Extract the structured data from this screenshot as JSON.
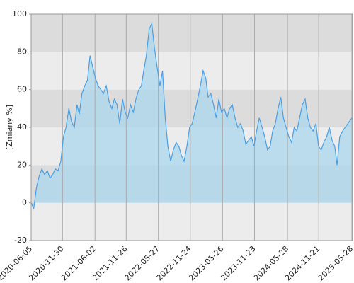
{
  "chart_data": {
    "type": "area",
    "y_label": "[Zmiany %]",
    "x": [
      "2020-06-05",
      "2020-06-20",
      "2020-07-05",
      "2020-07-20",
      "2020-08-05",
      "2020-08-20",
      "2020-09-05",
      "2020-09-20",
      "2020-10-05",
      "2020-10-20",
      "2020-11-05",
      "2020-11-20",
      "2020-12-05",
      "2020-12-20",
      "2021-01-05",
      "2021-01-20",
      "2021-02-05",
      "2021-02-20",
      "2021-03-05",
      "2021-03-20",
      "2021-04-05",
      "2021-04-20",
      "2021-05-05",
      "2021-05-20",
      "2021-06-05",
      "2021-06-20",
      "2021-07-05",
      "2021-07-20",
      "2021-08-05",
      "2021-08-20",
      "2021-09-05",
      "2021-09-20",
      "2021-10-05",
      "2021-10-20",
      "2021-11-05",
      "2021-11-20",
      "2021-12-05",
      "2021-12-20",
      "2022-01-05",
      "2022-01-20",
      "2022-02-05",
      "2022-02-20",
      "2022-03-05",
      "2022-03-20",
      "2022-04-05",
      "2022-04-20",
      "2022-05-05",
      "2022-05-20",
      "2022-06-05",
      "2022-06-20",
      "2022-07-05",
      "2022-07-20",
      "2022-08-05",
      "2022-08-20",
      "2022-09-05",
      "2022-09-20",
      "2022-10-05",
      "2022-10-20",
      "2022-11-05",
      "2022-11-20",
      "2022-12-05",
      "2022-12-20",
      "2023-01-05",
      "2023-01-20",
      "2023-02-05",
      "2023-02-20",
      "2023-03-05",
      "2023-03-20",
      "2023-04-05",
      "2023-04-20",
      "2023-05-05",
      "2023-05-20",
      "2023-06-05",
      "2023-06-20",
      "2023-07-05",
      "2023-07-20",
      "2023-08-05",
      "2023-08-20",
      "2023-09-05",
      "2023-09-20",
      "2023-10-05",
      "2023-10-20",
      "2023-11-05",
      "2023-11-20",
      "2023-12-05",
      "2023-12-20",
      "2024-01-05",
      "2024-01-20",
      "2024-02-05",
      "2024-02-20",
      "2024-03-05",
      "2024-03-20",
      "2024-04-05",
      "2024-04-20",
      "2024-05-05",
      "2024-05-20",
      "2024-06-05",
      "2024-06-20",
      "2024-07-05",
      "2024-07-20",
      "2024-08-05",
      "2024-08-20",
      "2024-09-05",
      "2024-09-20",
      "2024-10-05",
      "2024-10-20",
      "2024-11-05",
      "2024-11-20",
      "2024-12-05",
      "2024-12-20",
      "2025-01-05",
      "2025-01-20",
      "2025-02-05",
      "2025-02-20",
      "2025-03-05",
      "2025-03-20",
      "2025-04-05",
      "2025-04-20",
      "2025-05-28"
    ],
    "values": [
      0,
      -3,
      8,
      14,
      18,
      15,
      17,
      13,
      15,
      18,
      17,
      22,
      35,
      40,
      50,
      43,
      40,
      52,
      47,
      58,
      62,
      65,
      78,
      72,
      66,
      62,
      60,
      58,
      62,
      54,
      50,
      55,
      52,
      42,
      55,
      48,
      45,
      52,
      48,
      55,
      60,
      62,
      70,
      78,
      92,
      95,
      82,
      72,
      62,
      70,
      45,
      30,
      22,
      28,
      32,
      30,
      25,
      22,
      30,
      40,
      42,
      48,
      55,
      62,
      70,
      66,
      56,
      58,
      52,
      45,
      55,
      48,
      50,
      45,
      50,
      52,
      45,
      40,
      42,
      38,
      31,
      33,
      35,
      30,
      38,
      45,
      40,
      35,
      28,
      30,
      38,
      42,
      50,
      56,
      45,
      40,
      35,
      32,
      40,
      38,
      45,
      52,
      55,
      45,
      40,
      38,
      42,
      30,
      28,
      32,
      35,
      40,
      33,
      30,
      20,
      35,
      38,
      40,
      45
    ],
    "color": "#4a9fe6",
    "fill_color": "#a7d6ee",
    "xlim": [
      "2020-06-05",
      "2025-06-01"
    ],
    "xticks": [
      "2020-06-05",
      "2020-11-30",
      "2021-06-02",
      "2021-11-26",
      "2022-05-27",
      "2022-11-24",
      "2023-05-26",
      "2023-11-23",
      "2024-05-28",
      "2024-11-21",
      "2025-05-28"
    ],
    "ylim": [
      -20,
      100
    ],
    "yticks": [
      -20,
      0,
      20,
      40,
      60,
      80,
      100
    ],
    "band_colors": [
      "#ececec",
      "#dcdcdc"
    ],
    "grid": true
  }
}
